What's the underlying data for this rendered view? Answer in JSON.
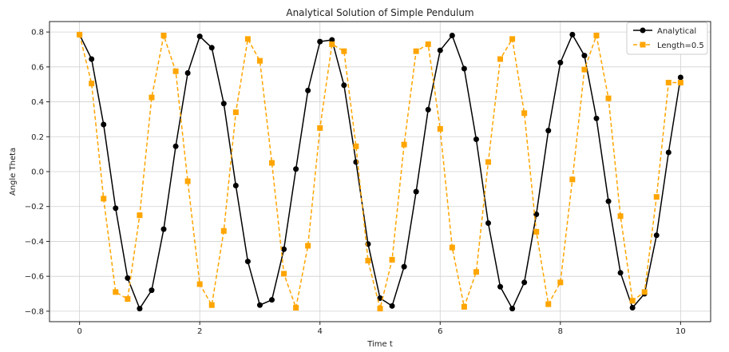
{
  "chart_data": {
    "type": "line",
    "title": "Analytical Solution of Simple Pendulum",
    "xlabel": "Time t",
    "ylabel": "Angle Theta",
    "xlim": [
      -0.5,
      10.5
    ],
    "ylim": [
      -0.86,
      0.86
    ],
    "xticks": [
      0,
      2,
      4,
      6,
      8,
      10
    ],
    "xtick_labels": [
      "0",
      "2",
      "4",
      "6",
      "8",
      "10"
    ],
    "yticks": [
      -0.8,
      -0.6,
      -0.4,
      -0.2,
      0.0,
      0.2,
      0.4,
      0.6,
      0.8
    ],
    "ytick_labels": [
      "−0.8",
      "−0.6",
      "−0.4",
      "−0.2",
      "0.0",
      "0.2",
      "0.4",
      "0.6",
      "0.8"
    ],
    "grid": true,
    "legend_position": "top-right",
    "series": [
      {
        "name": "Analytical",
        "color": "#000000",
        "line_style": "solid",
        "marker": "circle",
        "x": [
          0.0,
          0.2,
          0.4,
          0.6,
          0.8,
          1.0,
          1.2,
          1.4,
          1.6,
          1.8,
          2.0,
          2.2,
          2.4,
          2.6,
          2.8,
          3.0,
          3.2,
          3.4,
          3.6,
          3.8,
          4.0,
          4.2,
          4.4,
          4.6,
          4.8,
          5.0,
          5.2,
          5.4,
          5.6,
          5.8,
          6.0,
          6.2,
          6.4,
          6.6,
          6.8,
          7.0,
          7.2,
          7.4,
          7.6,
          7.8,
          8.0,
          8.2,
          8.4,
          8.6,
          8.8,
          9.0,
          9.2,
          9.4,
          9.6,
          9.8,
          10.0
        ],
        "y": [
          0.785,
          0.645,
          0.27,
          -0.21,
          -0.61,
          -0.785,
          -0.68,
          -0.33,
          0.145,
          0.565,
          0.775,
          0.71,
          0.39,
          -0.08,
          -0.515,
          -0.765,
          -0.735,
          -0.445,
          0.015,
          0.465,
          0.745,
          0.755,
          0.495,
          0.055,
          -0.415,
          -0.725,
          -0.77,
          -0.545,
          -0.115,
          0.355,
          0.695,
          0.78,
          0.59,
          0.185,
          -0.295,
          -0.66,
          -0.785,
          -0.635,
          -0.245,
          0.235,
          0.625,
          0.785,
          0.665,
          0.305,
          -0.17,
          -0.58,
          -0.78,
          -0.7,
          -0.365,
          0.11,
          0.54
        ]
      },
      {
        "name": "Length=0.5",
        "color": "#FFA500",
        "line_style": "dashed",
        "marker": "square",
        "x": [
          0.0,
          0.2,
          0.4,
          0.6,
          0.8,
          1.0,
          1.2,
          1.4,
          1.6,
          1.8,
          2.0,
          2.2,
          2.4,
          2.6,
          2.8,
          3.0,
          3.2,
          3.4,
          3.6,
          3.8,
          4.0,
          4.2,
          4.4,
          4.6,
          4.8,
          5.0,
          5.2,
          5.4,
          5.6,
          5.8,
          6.0,
          6.2,
          6.4,
          6.6,
          6.8,
          7.0,
          7.2,
          7.4,
          7.6,
          7.8,
          8.0,
          8.2,
          8.4,
          8.6,
          8.8,
          9.0,
          9.2,
          9.4,
          9.6,
          9.8,
          10.0
        ],
        "y": [
          0.785,
          0.505,
          -0.155,
          -0.69,
          -0.73,
          -0.25,
          0.425,
          0.78,
          0.575,
          -0.055,
          -0.645,
          -0.765,
          -0.34,
          0.34,
          0.76,
          0.635,
          0.05,
          -0.585,
          -0.78,
          -0.425,
          0.25,
          0.73,
          0.69,
          0.145,
          -0.51,
          -0.785,
          -0.505,
          0.155,
          0.69,
          0.73,
          0.245,
          -0.435,
          -0.775,
          -0.575,
          0.055,
          0.645,
          0.76,
          0.335,
          -0.345,
          -0.76,
          -0.635,
          -0.045,
          0.585,
          0.78,
          0.42,
          -0.255,
          -0.74,
          -0.69,
          -0.145,
          0.51,
          0.51
        ]
      }
    ]
  }
}
